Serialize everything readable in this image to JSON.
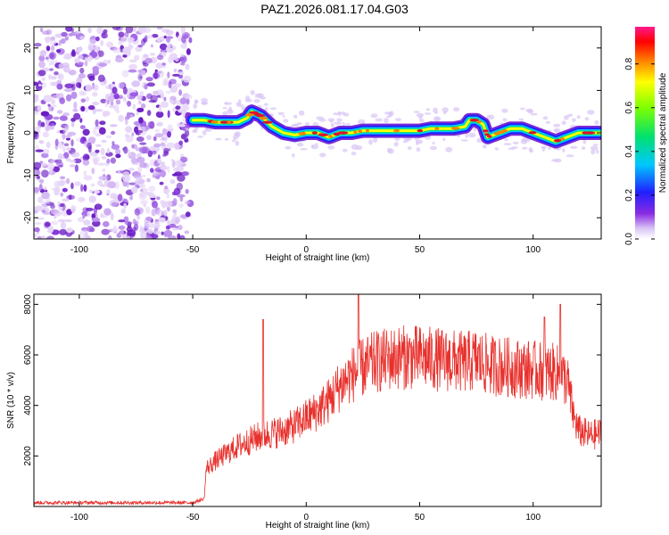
{
  "title": "PAZ1.2026.081.17.04.G03",
  "colors": {
    "line": "#e8302c",
    "ridge_core": "#e01030",
    "noise": "#8a2be2",
    "axis": "#000000"
  },
  "chart_data": [
    {
      "type": "heatmap",
      "name": "spectrogram",
      "xlabel": "Height of straight line (km)",
      "ylabel": "Frequency (Hz)",
      "xlim": [
        -120,
        130
      ],
      "ylim": [
        -25,
        25
      ],
      "xticks": [
        -100,
        -50,
        0,
        50,
        100
      ],
      "yticks": [
        20,
        10,
        0,
        -10,
        -20
      ],
      "colorbar": {
        "label": "Normalized spectral amplitude",
        "range": [
          0,
          0.97
        ],
        "ticks": [
          "0.0",
          "0.2",
          "0.4",
          "0.6",
          "0.8"
        ],
        "tick_values": [
          0.0,
          0.2,
          0.4,
          0.6,
          0.8
        ]
      },
      "noise_region_x": [
        -120,
        -50
      ],
      "ridge": {
        "x": [
          -50,
          -45,
          -40,
          -35,
          -30,
          -26,
          -24,
          -20,
          -15,
          -10,
          -5,
          0,
          5,
          10,
          15,
          20,
          25,
          30,
          35,
          40,
          45,
          50,
          55,
          60,
          65,
          70,
          72,
          75,
          78,
          80,
          85,
          90,
          95,
          100,
          105,
          110,
          115,
          120,
          125,
          130
        ],
        "freq": [
          3,
          3,
          2.5,
          2.5,
          2.5,
          3.5,
          5,
          4,
          1.5,
          0,
          -0.5,
          0,
          0,
          -1,
          0,
          0,
          0.5,
          0.5,
          0.5,
          0.5,
          0.5,
          0.5,
          1,
          1,
          1,
          1.5,
          3,
          3,
          2,
          -1,
          0,
          1,
          1,
          0,
          -1,
          -2,
          -1,
          0,
          0,
          0
        ]
      }
    },
    {
      "type": "line",
      "name": "snr",
      "xlabel": "Height of straight line (km)",
      "ylabel": "SNR (10 * v/v)",
      "xlim": [
        -120,
        130
      ],
      "ylim": [
        0,
        8400
      ],
      "xticks": [
        -100,
        -50,
        0,
        50,
        100
      ],
      "yticks": [
        2000,
        4000,
        6000,
        8000
      ],
      "trend": {
        "x": [
          -120,
          -50,
          -45,
          -44,
          -40,
          -35,
          -30,
          -25,
          -20,
          -15,
          -10,
          -5,
          0,
          5,
          10,
          15,
          20,
          25,
          30,
          40,
          50,
          60,
          70,
          75,
          80,
          90,
          100,
          110,
          115,
          118,
          120,
          125,
          130
        ],
        "y": [
          150,
          150,
          300,
          1500,
          1800,
          2100,
          2400,
          2600,
          2800,
          2900,
          3000,
          3200,
          3500,
          3800,
          4200,
          4800,
          5200,
          5500,
          5700,
          5900,
          5900,
          5800,
          5700,
          5800,
          5600,
          5500,
          5400,
          5300,
          5000,
          3500,
          3000,
          2800,
          2900
        ]
      },
      "spikes": [
        {
          "x": -19,
          "y": 7400
        },
        {
          "x": 23,
          "y": 8400
        },
        {
          "x": 105,
          "y": 7500
        },
        {
          "x": 112,
          "y": 8000
        }
      ]
    }
  ]
}
